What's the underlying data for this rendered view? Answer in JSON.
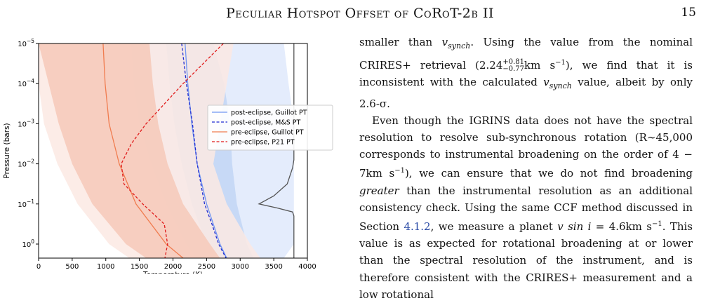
{
  "header": {
    "running_title": "Peculiar Hotspot Offset of CoRoT-2b II",
    "page_number": "15"
  },
  "body_text": {
    "p1_a": "smaller than ",
    "p1_vsynch": "v",
    "p1_vsynch_sub": "synch",
    "p1_b": ". Using the value from the nominal CRIRES+ retrieval (2.24",
    "p1_sup": "+0.81",
    "p1_sub": "−0.77",
    "p1_c": "km s",
    "p1_c_sup": "−1",
    "p1_d": "), we find that it is inconsistent with the calculated ",
    "p1_e": " value, albeit by only 2.6-σ.",
    "p2_a": "Even though the IGRINS data does not have the spectral resolution to resolve sub-synchronous rotation (R∼45,000 corresponds to instrumental broadening on the order of 4 − 7km s",
    "p2_b": "), we can ensure that we do not find broadening ",
    "p2_greater": "greater",
    "p2_c": " than the instrumental resolution as an additional consistency check. Using the same CCF method discussed in Section ",
    "p2_ref": "4.1.2",
    "p2_d": ", we measure a planet ",
    "p2_vsini": "v sin i",
    "p2_e": " = 4.6km s",
    "p2_f": ". This value is as expected for rotational broadening at or lower than the spectral resolution of the instrument, and is therefore consistent with the CRIRES+ measurement and a low rotational"
  },
  "chart_data": {
    "type": "line",
    "xlabel": "Temperature (K)",
    "ylabel": "Pressure (bars)",
    "xlim": [
      0,
      4000
    ],
    "ylim_log10": [
      0.35,
      -5
    ],
    "xticks": [
      "0",
      "500",
      "1000",
      "1500",
      "2000",
      "2500",
      "3000",
      "3500",
      "4000"
    ],
    "yticks": [
      {
        "base": "10",
        "exp": "−5",
        "log": -5
      },
      {
        "base": "10",
        "exp": "−4",
        "log": -4
      },
      {
        "base": "10",
        "exp": "−3",
        "log": -3
      },
      {
        "base": "10",
        "exp": "−2",
        "log": -2
      },
      {
        "base": "10",
        "exp": "−1",
        "log": -1
      },
      {
        "base": "10",
        "exp": "0",
        "log": 0
      }
    ],
    "legend_position": "right",
    "series": [
      {
        "name": "post-eclipse, Guillot PT",
        "color": "#6f95f2",
        "dash": "solid",
        "logp": [
          -5,
          -4,
          -3,
          -2,
          -1,
          0,
          0.35
        ],
        "t": [
          2180,
          2220,
          2280,
          2360,
          2500,
          2700,
          2800
        ]
      },
      {
        "name": "post-eclipse, M&S PT",
        "color": "#1f2bd1",
        "dash": "dashed",
        "logp": [
          -5,
          -4,
          -3,
          -2,
          -1,
          -0.5,
          0,
          0.35
        ],
        "t": [
          2130,
          2200,
          2290,
          2360,
          2470,
          2580,
          2680,
          2790
        ]
      },
      {
        "name": "pre-eclipse, Guillot PT",
        "color": "#f07c4f",
        "dash": "solid",
        "logp": [
          -5,
          -4,
          -3,
          -2,
          -1,
          0,
          0.35
        ],
        "t": [
          960,
          990,
          1050,
          1200,
          1450,
          1900,
          2150
        ]
      },
      {
        "name": "pre-eclipse, P21 PT",
        "color": "#e01b1b",
        "dash": "dashed",
        "logp": [
          -5,
          -4,
          -3,
          -2.5,
          -2,
          -1.5,
          -1,
          -0.5,
          0,
          0.35
        ],
        "t": [
          2750,
          2150,
          1600,
          1380,
          1230,
          1270,
          1550,
          1870,
          1920,
          1880
        ]
      },
      {
        "name": "",
        "color": "#555555",
        "dash": "solid",
        "logp": [
          -5,
          -2.1,
          -1.9,
          -1.5,
          -1.2,
          -1.0,
          -0.9,
          -0.8,
          -0.7,
          0.35
        ],
        "t": [
          3800,
          3800,
          3780,
          3700,
          3500,
          3280,
          3550,
          3780,
          3800,
          3800
        ]
      }
    ],
    "bands": [
      {
        "color": "#dfe9fb",
        "logp": [
          -5,
          -4,
          -3,
          -2,
          -1,
          0,
          0.35
        ],
        "lo": [
          1380,
          1420,
          1500,
          1680,
          1900,
          2200,
          2350
        ],
        "hi": [
          3650,
          3720,
          3800,
          3800,
          3800,
          3800,
          3650
        ]
      },
      {
        "color": "#c2d6f5",
        "logp": [
          -5,
          -4,
          -3,
          -2,
          -1,
          0,
          0.35
        ],
        "lo": [
          1900,
          1950,
          2020,
          2130,
          2280,
          2500,
          2600
        ],
        "hi": [
          2600,
          2760,
          2850,
          2880,
          2950,
          3100,
          3200
        ]
      },
      {
        "color": "#fbe9e3",
        "logp": [
          -5,
          -4,
          -3,
          -2,
          -1,
          0,
          0.35
        ],
        "lo": [
          0,
          0,
          80,
          280,
          580,
          1050,
          1350
        ],
        "hi": [
          2900,
          2800,
          2700,
          2600,
          2800,
          3150,
          3300
        ]
      },
      {
        "color": "#f6c9b8",
        "logp": [
          -5,
          -4,
          -3,
          -2,
          -1,
          0,
          0.35
        ],
        "lo": [
          0,
          150,
          300,
          500,
          800,
          1300,
          1600
        ],
        "hi": [
          1650,
          1700,
          1780,
          1920,
          2150,
          2550,
          2700
        ]
      }
    ]
  }
}
